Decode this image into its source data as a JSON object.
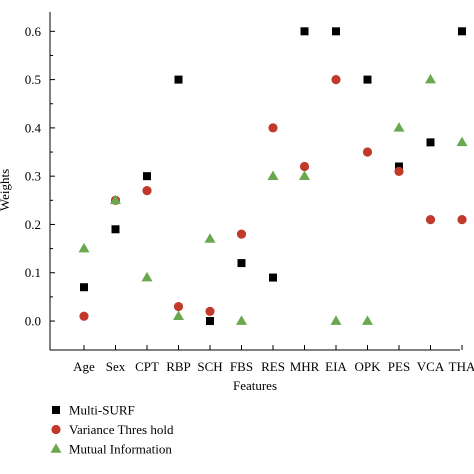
{
  "chart_data": {
    "type": "scatter",
    "title": "",
    "xlabel": "Features",
    "ylabel": "Weights",
    "categories": [
      "Age",
      "Sex",
      "CPT",
      "RBP",
      "SCH",
      "FBS",
      "RES",
      "MHR",
      "EIA",
      "OPK",
      "PES",
      "VCA",
      "THA"
    ],
    "ylim": [
      -0.06,
      0.64
    ],
    "yticks": [
      "0.0",
      "0.1",
      "0.2",
      "0.3",
      "0.4",
      "0.5",
      "0.6"
    ],
    "legend_position": "bottom-left",
    "grid": false,
    "series": [
      {
        "name": "Multi-SURF",
        "marker": "square",
        "color": "#000000",
        "values": [
          0.07,
          0.19,
          0.3,
          0.5,
          0.0,
          0.12,
          0.09,
          0.6,
          0.6,
          0.5,
          0.32,
          0.37,
          0.6
        ]
      },
      {
        "name": "Variance Thres hold",
        "marker": "circle",
        "color": "#c0392b",
        "values": [
          0.01,
          0.25,
          0.27,
          0.03,
          0.02,
          0.18,
          0.4,
          0.32,
          0.5,
          0.35,
          0.31,
          0.21,
          0.21
        ]
      },
      {
        "name": "Mutual Information",
        "marker": "triangle",
        "color": "#6aa84f",
        "values": [
          0.15,
          0.25,
          0.09,
          0.01,
          0.17,
          0.0,
          0.3,
          0.3,
          0.0,
          0.0,
          0.4,
          0.5,
          0.37
        ]
      }
    ]
  }
}
